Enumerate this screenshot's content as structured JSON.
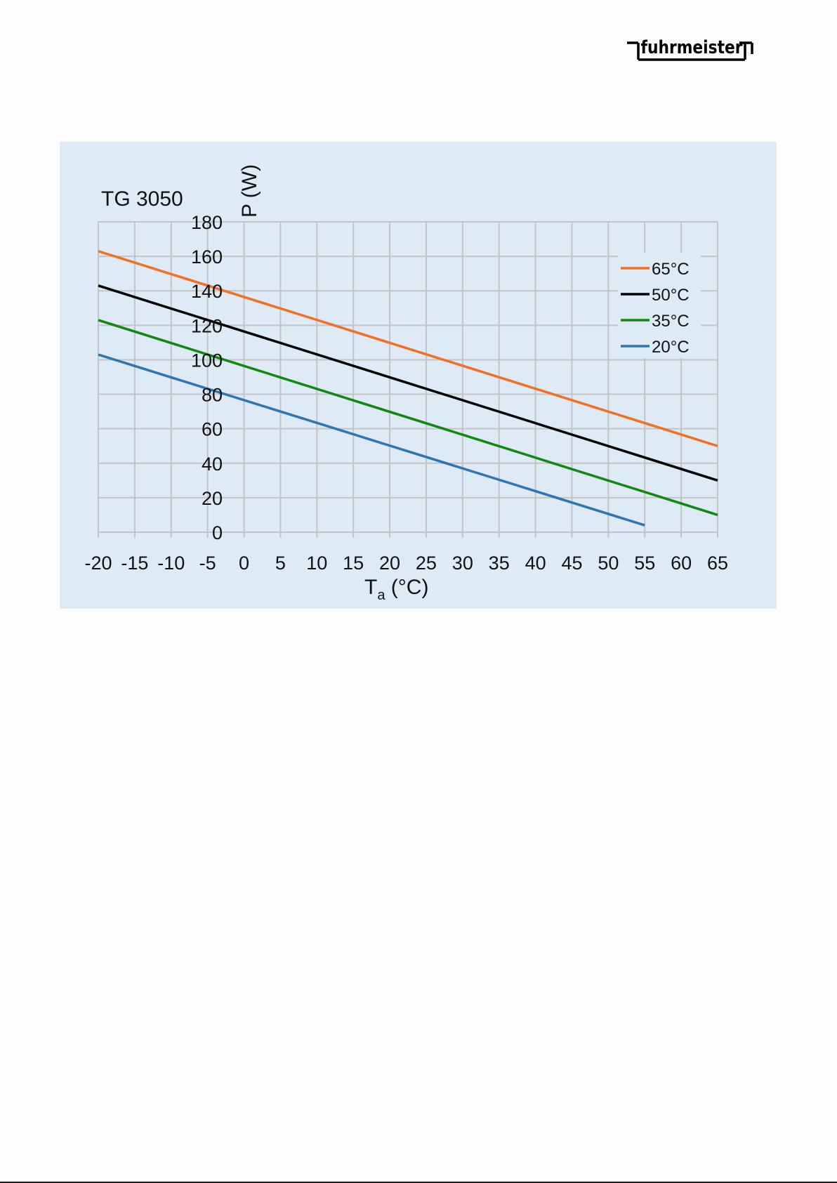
{
  "logo": {
    "text": "fuhrmeister"
  },
  "chart_data": {
    "type": "line",
    "title": "TG 3050",
    "ylabel": "P (W)",
    "xlabel_main": "T",
    "xlabel_sub": "a",
    "xlabel_unit": " (°C)",
    "xlim": [
      -20,
      65
    ],
    "ylim": [
      0,
      180
    ],
    "x_ticks": [
      -20,
      -15,
      -10,
      -5,
      0,
      5,
      10,
      15,
      20,
      25,
      30,
      35,
      40,
      45,
      50,
      55,
      60,
      65
    ],
    "y_ticks": [
      0,
      20,
      40,
      60,
      80,
      100,
      120,
      140,
      160,
      180
    ],
    "grid": true,
    "legend_position": "top-right",
    "series": [
      {
        "name": "65°C",
        "color": "#f36f21",
        "x": [
          -20,
          65
        ],
        "y": [
          163,
          50
        ]
      },
      {
        "name": "50°C",
        "color": "#000000",
        "x": [
          -20,
          65
        ],
        "y": [
          143,
          30
        ]
      },
      {
        "name": "35°C",
        "color": "#118811",
        "x": [
          -20,
          65
        ],
        "y": [
          123,
          10
        ]
      },
      {
        "name": "20°C",
        "color": "#2e75b6",
        "x": [
          -20,
          55
        ],
        "y": [
          103,
          4
        ]
      }
    ]
  }
}
